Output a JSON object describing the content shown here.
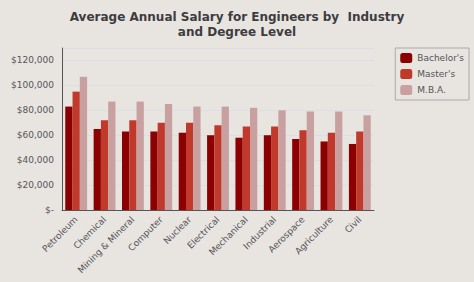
{
  "chart_data": {
    "type": "bar",
    "title": "Average Annual Salary for Engineers by  Industry\nand Degree Level",
    "categories": [
      "Petroleum",
      "Chemical",
      "Mining & Mineral",
      "Computer",
      "Nuclear",
      "Electrical",
      "Mechanical",
      "Industrial",
      "Aerospace",
      "Agriculture",
      "Civil"
    ],
    "series": [
      {
        "name": "Bachelor's",
        "color": "#8B0000",
        "values": [
          83000,
          65000,
          63000,
          63000,
          62000,
          60000,
          58000,
          60000,
          57000,
          55000,
          53000
        ]
      },
      {
        "name": "Master's",
        "color": "#C0392B",
        "values": [
          95000,
          72000,
          72000,
          70000,
          70000,
          68000,
          67000,
          67000,
          64000,
          62000,
          63000
        ]
      },
      {
        "name": "M.B.A.",
        "color": "#C8A0A0",
        "values": [
          107000,
          87000,
          87000,
          85000,
          83000,
          83000,
          82000,
          80000,
          79000,
          79000,
          76000
        ]
      }
    ],
    "ylim": [
      0,
      130000
    ],
    "yticks": [
      {
        "value": 0,
        "label": "$-"
      },
      {
        "value": 20000,
        "label": "$20,000"
      },
      {
        "value": 40000,
        "label": "$40,000"
      },
      {
        "value": 60000,
        "label": "$60,000"
      },
      {
        "value": 80000,
        "label": "$80,000"
      },
      {
        "value": 100000,
        "label": "$100,000"
      },
      {
        "value": 120000,
        "label": "$120,000"
      }
    ],
    "grid": true,
    "legend": "upper right"
  }
}
